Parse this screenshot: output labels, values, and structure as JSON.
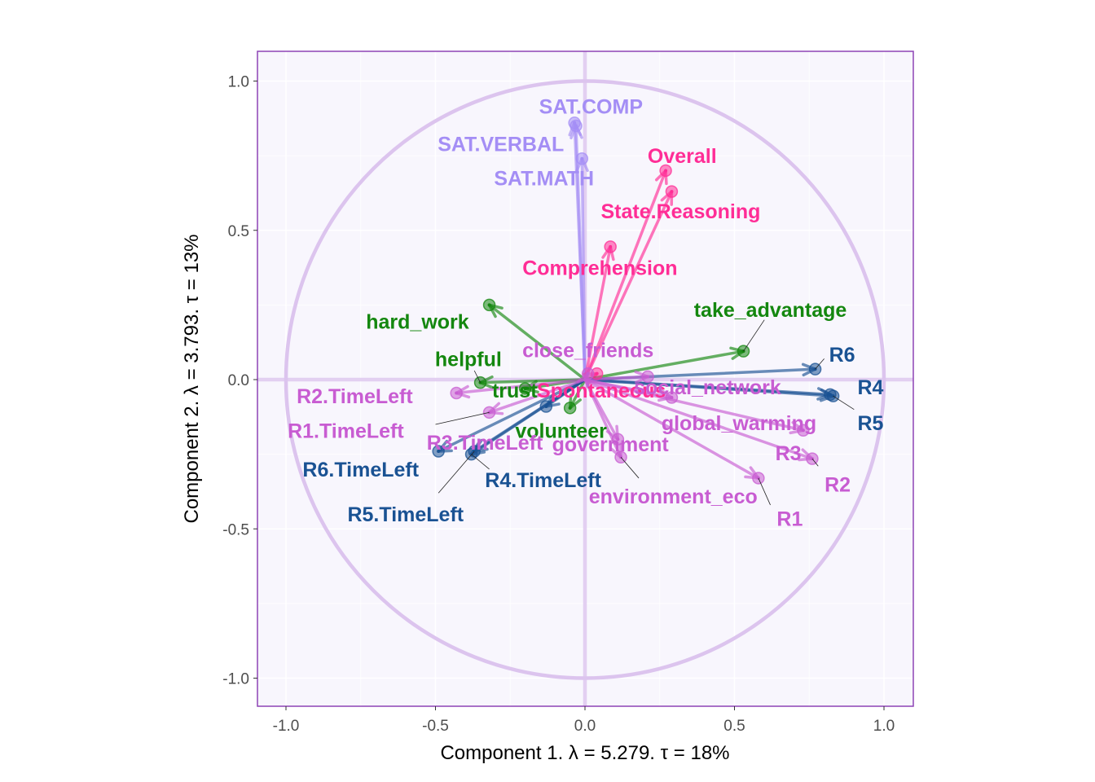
{
  "chart_data": {
    "type": "scatter",
    "title": "",
    "xlabel": "Component 1.   λ = 5.279.  τ = 18%",
    "ylabel": "Component 2.   λ = 3.793.  τ = 13%",
    "xlim": [
      -1.1,
      1.1
    ],
    "ylim": [
      -1.1,
      1.1
    ],
    "x_ticks": [
      -1.0,
      -0.5,
      0.0,
      0.5,
      1.0
    ],
    "x_tick_labels": [
      "-1.0",
      "-0.5",
      "0.0",
      "0.5",
      "1.0"
    ],
    "y_ticks": [
      1.0,
      0.5,
      0.0,
      -0.5,
      -1.0
    ],
    "y_tick_labels": [
      "1.0",
      "0.5",
      "0.0",
      "-0.5",
      "-1.0"
    ],
    "grid": true,
    "correlation_circle_radius": 1.0,
    "colors": {
      "panel_bg": "#f8f6fd",
      "panel_border": "#8e44b5",
      "grid": "#ffffff",
      "circle": "#dcc4ee",
      "cross": "#dcc4ee",
      "sat": "#a48ef5",
      "pink": "#ff2d96",
      "green": "#14870f",
      "blue": "#1a5293",
      "orchid": "#c85cd2"
    },
    "series": [
      {
        "color_key": "sat",
        "points": [
          {
            "label": "SAT.COMP",
            "x": -0.035,
            "y": 0.86
          },
          {
            "label": "SAT.VERBAL",
            "x": -0.03,
            "y": 0.85
          },
          {
            "label": "SAT.MATH",
            "x": -0.01,
            "y": 0.74
          }
        ]
      },
      {
        "color_key": "pink",
        "points": [
          {
            "label": "Overall",
            "x": 0.27,
            "y": 0.7
          },
          {
            "label": "State.Reasoning",
            "x": 0.29,
            "y": 0.63
          },
          {
            "label": "Comprehension",
            "x": 0.085,
            "y": 0.445
          },
          {
            "label": "Spontaneous",
            "x": 0.04,
            "y": 0.02
          }
        ]
      },
      {
        "color_key": "green",
        "points": [
          {
            "label": "take_advantage",
            "x": 0.53,
            "y": 0.095
          },
          {
            "label": "hard_work",
            "x": -0.32,
            "y": 0.25
          },
          {
            "label": "helpful",
            "x": -0.35,
            "y": -0.01
          },
          {
            "label": "trust",
            "x": -0.2,
            "y": -0.03
          },
          {
            "label": "volunteer",
            "x": -0.05,
            "y": -0.095
          }
        ]
      },
      {
        "color_key": "blue",
        "points": [
          {
            "label": "R6",
            "x": 0.77,
            "y": 0.035
          },
          {
            "label": "R4",
            "x": 0.82,
            "y": -0.05
          },
          {
            "label": "R5",
            "x": 0.83,
            "y": -0.055
          },
          {
            "label": "R6.TimeLeft",
            "x": -0.49,
            "y": -0.24
          },
          {
            "label": "R4.TimeLeft",
            "x": -0.38,
            "y": -0.25
          },
          {
            "label": "R5.TimeLeft",
            "x": -0.37,
            "y": -0.24
          },
          {
            "label": "R3.TimeLeft",
            "x": -0.13,
            "y": -0.09
          }
        ]
      },
      {
        "color_key": "orchid",
        "points": [
          {
            "label": "close_friends",
            "x": 0.01,
            "y": 0.02
          },
          {
            "label": "social_network",
            "x": 0.21,
            "y": 0.01
          },
          {
            "label": "global_warming",
            "x": 0.29,
            "y": -0.06
          },
          {
            "label": "R2.TimeLeft",
            "x": -0.43,
            "y": -0.045
          },
          {
            "label": "R1.TimeLeft",
            "x": -0.32,
            "y": -0.11
          },
          {
            "label": "R3",
            "x": 0.73,
            "y": -0.17
          },
          {
            "label": "R2",
            "x": 0.76,
            "y": -0.265
          },
          {
            "label": "R1",
            "x": 0.58,
            "y": -0.33
          },
          {
            "label": "environment_eco",
            "x": 0.12,
            "y": -0.26
          },
          {
            "label": "government",
            "x": 0.11,
            "y": -0.2
          }
        ]
      }
    ],
    "labels": [
      {
        "text": "SAT.COMP",
        "x": 0.02,
        "y": 0.915,
        "color_key": "sat",
        "anchor": "middle"
      },
      {
        "text": "SAT.VERBAL",
        "x": -0.07,
        "y": 0.79,
        "color_key": "sat",
        "anchor": "end"
      },
      {
        "text": "SAT.MATH",
        "x": 0.03,
        "y": 0.675,
        "color_key": "sat",
        "anchor": "end"
      },
      {
        "text": "Overall",
        "x": 0.325,
        "y": 0.75,
        "color_key": "pink",
        "anchor": "middle"
      },
      {
        "text": "State.Reasoning",
        "x": 0.32,
        "y": 0.565,
        "color_key": "pink",
        "anchor": "middle"
      },
      {
        "text": "Comprehension",
        "x": 0.05,
        "y": 0.375,
        "color_key": "pink",
        "anchor": "middle"
      },
      {
        "text": "Spontaneous",
        "x": 0.055,
        "y": -0.035,
        "color_key": "pink",
        "anchor": "middle"
      },
      {
        "text": "take_advantage",
        "x": 0.62,
        "y": 0.235,
        "color_key": "green",
        "anchor": "middle"
      },
      {
        "text": "hard_work",
        "x": -0.56,
        "y": 0.195,
        "color_key": "green",
        "anchor": "middle"
      },
      {
        "text": "helpful",
        "x": -0.39,
        "y": 0.07,
        "color_key": "green",
        "anchor": "middle"
      },
      {
        "text": "trust",
        "x": -0.235,
        "y": -0.035,
        "color_key": "green",
        "anchor": "middle"
      },
      {
        "text": "volunteer",
        "x": -0.08,
        "y": -0.17,
        "color_key": "green",
        "anchor": "middle"
      },
      {
        "text": "R6",
        "x": 0.86,
        "y": 0.085,
        "color_key": "blue",
        "anchor": "middle"
      },
      {
        "text": "R4",
        "x": 0.955,
        "y": -0.025,
        "color_key": "blue",
        "anchor": "middle"
      },
      {
        "text": "R5",
        "x": 0.955,
        "y": -0.145,
        "color_key": "blue",
        "anchor": "middle"
      },
      {
        "text": "R6.TimeLeft",
        "x": -0.75,
        "y": -0.3,
        "color_key": "blue",
        "anchor": "middle"
      },
      {
        "text": "R4.TimeLeft",
        "x": -0.14,
        "y": -0.335,
        "color_key": "blue",
        "anchor": "middle"
      },
      {
        "text": "R5.TimeLeft",
        "x": -0.6,
        "y": -0.45,
        "color_key": "blue",
        "anchor": "middle"
      },
      {
        "text": "R3.TimeLeft",
        "x": -0.335,
        "y": -0.21,
        "color_key": "orchid",
        "anchor": "middle"
      },
      {
        "text": "close_friends",
        "x": 0.01,
        "y": 0.1,
        "color_key": "orchid",
        "anchor": "middle"
      },
      {
        "text": "social_network",
        "x": 0.41,
        "y": -0.025,
        "color_key": "orchid",
        "anchor": "middle"
      },
      {
        "text": "global_warming",
        "x": 0.515,
        "y": -0.145,
        "color_key": "orchid",
        "anchor": "middle"
      },
      {
        "text": "R2.TimeLeft",
        "x": -0.77,
        "y": -0.055,
        "color_key": "orchid",
        "anchor": "middle"
      },
      {
        "text": "R1.TimeLeft",
        "x": -0.8,
        "y": -0.17,
        "color_key": "orchid",
        "anchor": "middle"
      },
      {
        "text": "R3",
        "x": 0.68,
        "y": -0.245,
        "color_key": "orchid",
        "anchor": "middle"
      },
      {
        "text": "R2",
        "x": 0.845,
        "y": -0.35,
        "color_key": "orchid",
        "anchor": "middle"
      },
      {
        "text": "R1",
        "x": 0.685,
        "y": -0.465,
        "color_key": "orchid",
        "anchor": "middle"
      },
      {
        "text": "environment_eco",
        "x": 0.295,
        "y": -0.39,
        "color_key": "orchid",
        "anchor": "middle"
      },
      {
        "text": "government",
        "x": 0.085,
        "y": -0.215,
        "color_key": "orchid",
        "anchor": "middle"
      }
    ],
    "leader_lines": [
      {
        "x1": 0.53,
        "y1": 0.095,
        "x2": 0.6,
        "y2": 0.2
      },
      {
        "x1": 0.77,
        "y1": 0.035,
        "x2": 0.8,
        "y2": 0.07
      },
      {
        "x1": 0.83,
        "y1": -0.055,
        "x2": 0.9,
        "y2": -0.1
      },
      {
        "x1": 0.58,
        "y1": -0.33,
        "x2": 0.62,
        "y2": -0.42
      },
      {
        "x1": 0.76,
        "y1": -0.265,
        "x2": 0.78,
        "y2": -0.29
      },
      {
        "x1": 0.12,
        "y1": -0.26,
        "x2": 0.18,
        "y2": -0.33
      },
      {
        "x1": -0.37,
        "y1": -0.24,
        "x2": -0.49,
        "y2": -0.38
      },
      {
        "x1": -0.38,
        "y1": -0.25,
        "x2": -0.32,
        "y2": -0.3
      },
      {
        "x1": -0.32,
        "y1": -0.11,
        "x2": -0.5,
        "y2": -0.15
      },
      {
        "x1": -0.35,
        "y1": -0.01,
        "x2": -0.37,
        "y2": 0.03
      }
    ]
  }
}
